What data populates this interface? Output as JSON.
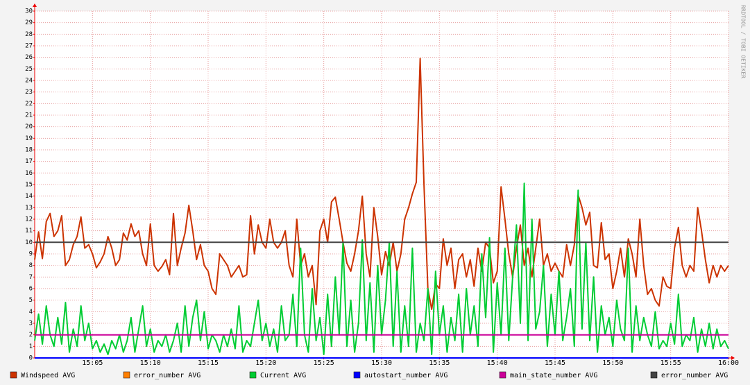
{
  "chart_data": {
    "type": "line",
    "credit": "RRDTOOL / TOBI OETIKER",
    "x": [
      0,
      20,
      40,
      60,
      80,
      100,
      120,
      140,
      160,
      180,
      200,
      220,
      240,
      260,
      280,
      300,
      320,
      340,
      360,
      380,
      400,
      420,
      440,
      460,
      480,
      500,
      520,
      540,
      560,
      580,
      600,
      620,
      640,
      660,
      680,
      700,
      720,
      740,
      760,
      780,
      800,
      820,
      840,
      860,
      880,
      900,
      920,
      940,
      960,
      980,
      1000,
      1020,
      1040,
      1060,
      1080,
      1100,
      1120,
      1140,
      1160,
      1180,
      1200,
      1220,
      1240,
      1260,
      1280,
      1300,
      1320,
      1340,
      1360,
      1380,
      1400,
      1420,
      1440,
      1460,
      1480,
      1500,
      1520,
      1540,
      1560,
      1580,
      1600,
      1620,
      1640,
      1660,
      1680,
      1700,
      1720,
      1740,
      1760,
      1780,
      1800,
      1820,
      1840,
      1860,
      1880,
      1900,
      1920,
      1940,
      1960,
      1980,
      2000,
      2020,
      2040,
      2060,
      2080,
      2100,
      2120,
      2140,
      2160,
      2180,
      2200,
      2220,
      2240,
      2260,
      2280,
      2300,
      2320,
      2340,
      2360,
      2380,
      2400,
      2420,
      2440,
      2460,
      2480,
      2500,
      2520,
      2540,
      2560,
      2580,
      2600,
      2620,
      2640,
      2660,
      2680,
      2700,
      2720,
      2740,
      2760,
      2780,
      2800,
      2820,
      2840,
      2860,
      2880,
      2900,
      2920,
      2940,
      2960,
      2980,
      3000,
      3020,
      3040,
      3060,
      3080,
      3100,
      3120,
      3140,
      3160,
      3180,
      3200,
      3220,
      3240,
      3260,
      3280,
      3300,
      3320,
      3340,
      3360,
      3380,
      3400,
      3420,
      3440,
      3460,
      3480,
      3500,
      3520,
      3540,
      3560,
      3580,
      3600
    ],
    "xlim": [
      0,
      3600
    ],
    "xticks": [
      {
        "value": 300,
        "label": "15:05"
      },
      {
        "value": 600,
        "label": "15:10"
      },
      {
        "value": 900,
        "label": "15:15"
      },
      {
        "value": 1200,
        "label": "15:20"
      },
      {
        "value": 1500,
        "label": "15:25"
      },
      {
        "value": 1800,
        "label": "15:30"
      },
      {
        "value": 2100,
        "label": "15:35"
      },
      {
        "value": 2400,
        "label": "15:40"
      },
      {
        "value": 2700,
        "label": "15:45"
      },
      {
        "value": 3000,
        "label": "15:50"
      },
      {
        "value": 3300,
        "label": "15:55"
      },
      {
        "value": 3600,
        "label": "16:00"
      }
    ],
    "ylim": [
      0,
      30
    ],
    "yticks": [
      0,
      1,
      2,
      3,
      4,
      5,
      6,
      7,
      8,
      9,
      10,
      11,
      12,
      13,
      14,
      15,
      16,
      17,
      18,
      19,
      20,
      21,
      22,
      23,
      24,
      25,
      26,
      27,
      28,
      29,
      30
    ],
    "grid": true,
    "series": [
      {
        "name": "Windspeed AVG",
        "color": "#cc3300",
        "values": [
          8.5,
          10.9,
          8.6,
          11.8,
          12.5,
          10.5,
          11.0,
          12.3,
          8.0,
          8.5,
          9.8,
          10.5,
          12.2,
          9.5,
          9.8,
          9.0,
          7.8,
          8.3,
          9.0,
          10.5,
          9.5,
          8.0,
          8.5,
          10.8,
          10.2,
          11.6,
          10.5,
          11.0,
          9.0,
          8.0,
          11.6,
          8.0,
          7.5,
          7.9,
          8.5,
          7.2,
          12.5,
          8.0,
          9.5,
          10.8,
          13.2,
          11.0,
          8.5,
          9.8,
          8.0,
          7.5,
          6.0,
          5.5,
          9.0,
          8.5,
          8.0,
          7.0,
          7.5,
          8.0,
          7.0,
          7.2,
          12.3,
          9.0,
          11.5,
          10.0,
          9.5,
          12.0,
          10.0,
          9.5,
          10.0,
          11.0,
          8.0,
          7.0,
          12.0,
          8.0,
          9.0,
          7.0,
          8.0,
          4.6,
          11.0,
          12.0,
          10.0,
          13.5,
          13.9,
          12.0,
          10.0,
          8.2,
          7.5,
          9.0,
          11.0,
          14.0,
          9.0,
          7.0,
          13.0,
          10.5,
          7.2,
          9.2,
          8.0,
          10.0,
          7.5,
          9.0,
          12.0,
          13.0,
          14.2,
          15.2,
          25.9,
          15.0,
          6.0,
          4.2,
          6.4,
          6.0,
          10.3,
          8.0,
          9.5,
          6.0,
          8.5,
          9.0,
          7.0,
          8.5,
          6.2,
          9.5,
          7.5,
          10.0,
          9.5,
          6.5,
          7.5,
          14.8,
          12.0,
          9.0,
          7.0,
          9.5,
          11.5,
          8.0,
          9.5,
          7.0,
          9.5,
          12.0,
          8.0,
          9.0,
          7.5,
          8.2,
          7.5,
          7.0,
          9.8,
          8.0,
          9.8,
          14.1,
          13.0,
          11.5,
          12.6,
          8.0,
          7.8,
          11.7,
          8.5,
          9.0,
          6.0,
          7.5,
          9.5,
          7.0,
          10.3,
          9.0,
          7.0,
          12.0,
          8.0,
          5.5,
          6.0,
          5.0,
          4.5,
          7.0,
          6.2,
          6.0,
          9.5,
          11.3,
          8.0,
          7.0,
          8.0,
          7.5,
          13.0,
          11.0,
          8.5,
          6.5,
          8.0,
          7.0,
          8.0,
          7.5,
          8.0
        ]
      },
      {
        "name": "error_number AVG",
        "color": "#ff7f00",
        "x": [
          0,
          3600
        ],
        "values": [
          0,
          0
        ]
      },
      {
        "name": "Current AVG",
        "color": "#00cc33",
        "values": [
          1.5,
          3.8,
          1.2,
          4.5,
          2.0,
          1.0,
          3.5,
          1.2,
          4.8,
          0.5,
          2.5,
          1.0,
          4.5,
          1.5,
          3.0,
          0.8,
          1.5,
          0.5,
          1.2,
          0.3,
          1.5,
          0.8,
          2.0,
          0.5,
          1.5,
          3.5,
          0.5,
          2.5,
          4.5,
          1.0,
          2.5,
          0.5,
          1.5,
          1.0,
          2.0,
          0.5,
          1.5,
          3.0,
          0.5,
          4.5,
          1.0,
          3.5,
          5.0,
          1.5,
          4.0,
          0.8,
          2.0,
          1.5,
          0.5,
          2.0,
          1.0,
          2.5,
          0.8,
          4.5,
          0.5,
          1.5,
          1.0,
          3.0,
          5.0,
          1.5,
          3.0,
          1.0,
          2.5,
          0.5,
          4.5,
          1.5,
          2.0,
          5.5,
          1.0,
          9.5,
          2.0,
          0.5,
          6.0,
          1.5,
          3.5,
          0.3,
          5.5,
          1.0,
          7.0,
          2.0,
          10.0,
          1.0,
          5.0,
          0.5,
          3.0,
          10.2,
          1.5,
          6.5,
          0.5,
          8.0,
          2.0,
          5.0,
          10.0,
          1.0,
          7.5,
          0.5,
          4.5,
          1.0,
          9.5,
          0.5,
          3.0,
          1.5,
          6.0,
          0.3,
          7.5,
          2.0,
          4.5,
          0.5,
          3.5,
          1.5,
          5.5,
          0.5,
          6.0,
          2.0,
          4.5,
          1.0,
          9.0,
          3.5,
          10.4,
          0.5,
          6.5,
          2.0,
          9.5,
          1.5,
          7.0,
          11.5,
          3.0,
          15.1,
          1.5,
          12.0,
          2.5,
          4.0,
          8.0,
          1.0,
          5.5,
          2.0,
          7.5,
          1.5,
          3.5,
          6.0,
          1.0,
          14.5,
          2.5,
          10.0,
          1.5,
          7.0,
          0.5,
          4.5,
          2.0,
          3.5,
          1.0,
          5.0,
          2.5,
          1.5,
          9.5,
          0.5,
          4.5,
          1.5,
          3.5,
          2.0,
          1.0,
          4.0,
          0.8,
          1.5,
          1.0,
          3.0,
          1.2,
          5.5,
          1.0,
          2.0,
          1.5,
          3.5,
          0.5,
          2.5,
          1.0,
          3.0,
          0.8,
          2.5,
          1.0,
          1.5,
          0.8
        ]
      },
      {
        "name": "autostart_number AVG",
        "color": "#0000ff",
        "x": [
          0,
          3600
        ],
        "values": [
          0,
          0
        ]
      },
      {
        "name": "main_state_number AVG",
        "color": "#cc0099",
        "x": [
          0,
          3600
        ],
        "values": [
          2,
          2
        ]
      },
      {
        "name": "error_number AVG",
        "color": "#444444",
        "x": [
          0,
          3600
        ],
        "values": [
          10,
          10
        ]
      }
    ]
  }
}
